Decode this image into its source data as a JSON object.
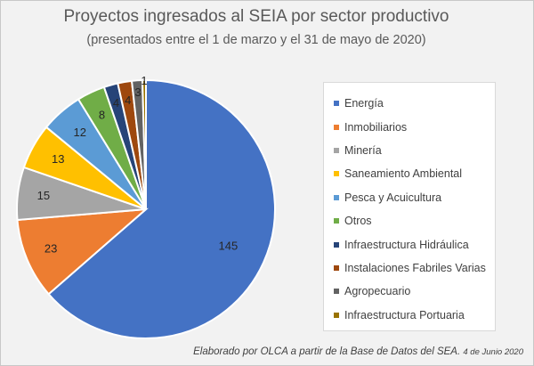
{
  "chart_data": {
    "type": "pie",
    "title": "Proyectos ingresados al SEIA por sector productivo",
    "subtitle": "(presentados entre el 1 de marzo y el 31 de mayo de 2020)",
    "legend_position": "right",
    "series": [
      {
        "name": "Energía",
        "value": 145,
        "color": "#4472c4"
      },
      {
        "name": "Inmobiliarios",
        "value": 23,
        "color": "#ed7d31"
      },
      {
        "name": "Minería",
        "value": 15,
        "color": "#a5a5a5"
      },
      {
        "name": "Saneamiento Ambiental",
        "value": 13,
        "color": "#ffc000"
      },
      {
        "name": "Pesca y Acuicultura",
        "value": 12,
        "color": "#5b9bd5"
      },
      {
        "name": "Otros",
        "value": 8,
        "color": "#70ad47"
      },
      {
        "name": "Infraestructura Hidráulica",
        "value": 4,
        "color": "#264478"
      },
      {
        "name": "Instalaciones Fabriles Varias",
        "value": 4,
        "color": "#9e480e"
      },
      {
        "name": "Agropecuario",
        "value": 3,
        "color": "#636363"
      },
      {
        "name": "Infraestructura Portuaria",
        "value": 1,
        "color": "#997300"
      }
    ]
  },
  "footer": {
    "text": "Elaborado por OLCA a partir de la Base de Datos del SEA.",
    "date": "4 de Junio 2020"
  }
}
